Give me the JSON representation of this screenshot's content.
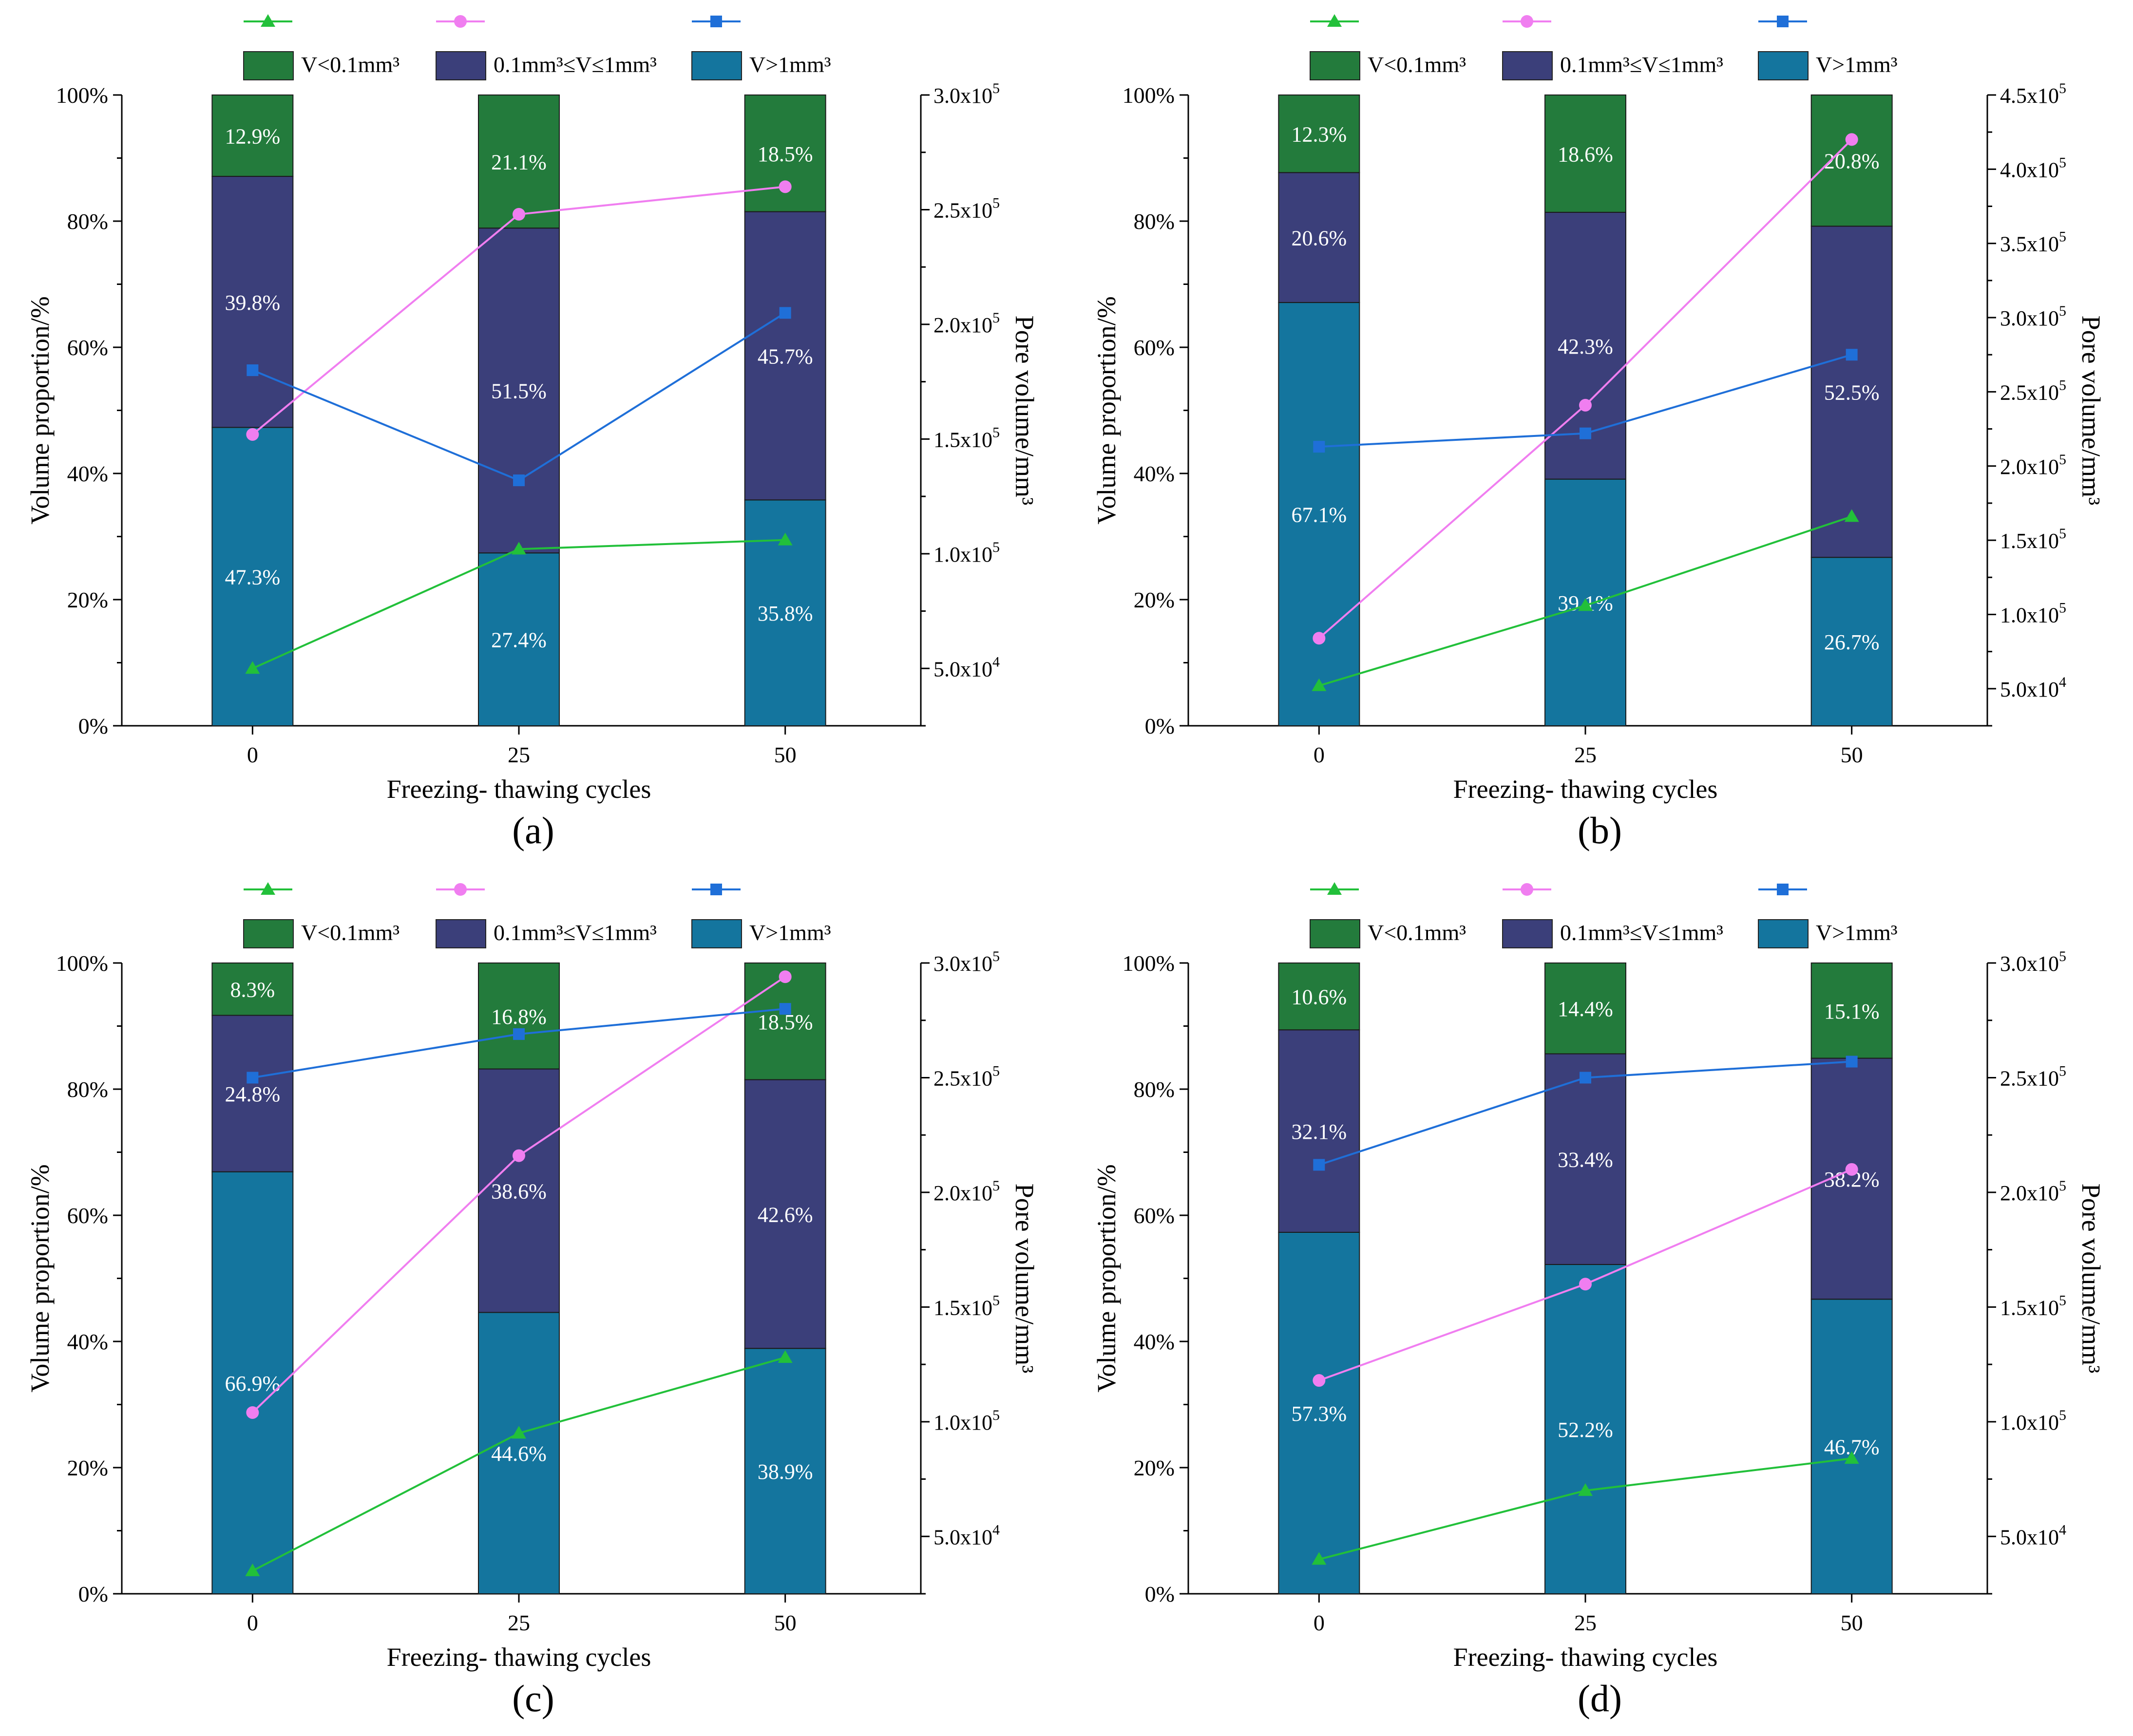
{
  "figure": {
    "panels": [
      {
        "id": "a",
        "label_text": "(a)"
      },
      {
        "id": "b",
        "label_text": "(b)"
      },
      {
        "id": "c",
        "label_text": "(c)"
      },
      {
        "id": "d",
        "label_text": "(d)"
      }
    ]
  },
  "legend": {
    "line_entries": [
      {
        "series": "V<0.1mm³",
        "color": "#22c03a",
        "marker": "triangle"
      },
      {
        "series": "0.1mm³≤V≤1mm³",
        "color": "#f07ef0",
        "marker": "circle"
      },
      {
        "series": "V>1mm³",
        "color": "#1f6fd8",
        "marker": "square"
      }
    ],
    "bar_entries": [
      {
        "label": "V<0.1mm³",
        "color": "#237b3c"
      },
      {
        "label": "0.1mm³≤V≤1mm³",
        "color": "#3b3f7a"
      },
      {
        "label": "V>1mm³",
        "color": "#14759e"
      }
    ]
  },
  "colors": {
    "bar_small": "#237b3c",
    "bar_mid": "#3b3f7a",
    "bar_large": "#14759e",
    "line_small": "#22c03a",
    "line_mid": "#f07ef0",
    "line_large": "#1f6fd8"
  },
  "chart_data": [
    {
      "type": "bar",
      "panel": "(a)",
      "stacked": true,
      "dual_axis": true,
      "categories": [
        "0",
        "25",
        "50"
      ],
      "xlabel": "Freezing- thawing cycles",
      "ylabel": "Volume proportion/%",
      "ylabel_right": "Pore volume/mm³",
      "ylim": [
        0,
        100
      ],
      "yticks": [
        "0%",
        "20%",
        "40%",
        "60%",
        "80%",
        "100%"
      ],
      "y2lim": [
        25000,
        300000
      ],
      "y2ticks": [
        {
          "value": 50000,
          "label": "5.0x10⁴"
        },
        {
          "value": 100000,
          "label": "1.0x10⁵"
        },
        {
          "value": 150000,
          "label": "1.5x10⁵"
        },
        {
          "value": 200000,
          "label": "2.0x10⁵"
        },
        {
          "value": 250000,
          "label": "2.5x10⁵"
        },
        {
          "value": 300000,
          "label": "3.0x10⁵"
        }
      ],
      "bar_series": [
        {
          "name": "V>1mm³",
          "values": [
            47.3,
            27.4,
            35.8
          ],
          "labels": [
            "47.3%",
            "27.4%",
            "35.8%"
          ]
        },
        {
          "name": "0.1mm³≤V≤1mm³",
          "values": [
            39.8,
            51.5,
            45.7
          ],
          "labels": [
            "39.8%",
            "51.5%",
            "45.7%"
          ]
        },
        {
          "name": "V<0.1mm³",
          "values": [
            12.9,
            21.1,
            18.5
          ],
          "labels": [
            "12.9%",
            "21.1%",
            "18.5%"
          ]
        }
      ],
      "line_series": [
        {
          "name": "V<0.1mm³",
          "values": [
            50000,
            102000,
            106000
          ]
        },
        {
          "name": "0.1mm³≤V≤1mm³",
          "values": [
            152000,
            248000,
            260000
          ]
        },
        {
          "name": "V>1mm³",
          "values": [
            180000,
            132000,
            205000
          ]
        }
      ]
    },
    {
      "type": "bar",
      "panel": "(b)",
      "stacked": true,
      "dual_axis": true,
      "categories": [
        "0",
        "25",
        "50"
      ],
      "xlabel": "Freezing- thawing cycles",
      "ylabel": "Volume proportion/%",
      "ylabel_right": "Pore volume/mm³",
      "ylim": [
        0,
        100
      ],
      "yticks": [
        "0%",
        "20%",
        "40%",
        "60%",
        "80%",
        "100%"
      ],
      "y2lim": [
        25000,
        450000
      ],
      "y2ticks": [
        {
          "value": 50000,
          "label": "5.0x10⁴"
        },
        {
          "value": 100000,
          "label": "1.0x10⁵"
        },
        {
          "value": 150000,
          "label": "1.5x10⁵"
        },
        {
          "value": 200000,
          "label": "2.0x10⁵"
        },
        {
          "value": 250000,
          "label": "2.5x10⁵"
        },
        {
          "value": 300000,
          "label": "3.0x10⁵"
        },
        {
          "value": 350000,
          "label": "3.5x10⁵"
        },
        {
          "value": 400000,
          "label": "4.0x10⁵"
        },
        {
          "value": 450000,
          "label": "4.5x10⁵"
        }
      ],
      "bar_series": [
        {
          "name": "V>1mm³",
          "values": [
            67.1,
            39.1,
            26.7
          ],
          "labels": [
            "67.1%",
            "39.1%",
            "26.7%"
          ]
        },
        {
          "name": "0.1mm³≤V≤1mm³",
          "values": [
            20.6,
            42.3,
            52.5
          ],
          "labels": [
            "20.6%",
            "42.3%",
            "52.5%"
          ]
        },
        {
          "name": "V<0.1mm³",
          "values": [
            12.3,
            18.6,
            20.8
          ],
          "labels": [
            "12.3%",
            "18.6%",
            "20.8%"
          ]
        }
      ],
      "line_series": [
        {
          "name": "V<0.1mm³",
          "values": [
            52000,
            106000,
            166000
          ]
        },
        {
          "name": "0.1mm³≤V≤1mm³",
          "values": [
            84000,
            241000,
            420000
          ]
        },
        {
          "name": "V>1mm³",
          "values": [
            213000,
            222000,
            275000
          ]
        }
      ]
    },
    {
      "type": "bar",
      "panel": "(c)",
      "stacked": true,
      "dual_axis": true,
      "categories": [
        "0",
        "25",
        "50"
      ],
      "xlabel": "Freezing- thawing cycles",
      "ylabel": "Volume proportion/%",
      "ylabel_right": "Pore volume/mm³",
      "ylim": [
        0,
        100
      ],
      "yticks": [
        "0%",
        "20%",
        "40%",
        "60%",
        "80%",
        "100%"
      ],
      "y2lim": [
        25000,
        300000
      ],
      "y2ticks": [
        {
          "value": 50000,
          "label": "5.0x10⁴"
        },
        {
          "value": 100000,
          "label": "1.0x10⁵"
        },
        {
          "value": 150000,
          "label": "1.5x10⁵"
        },
        {
          "value": 200000,
          "label": "2.0x10⁵"
        },
        {
          "value": 250000,
          "label": "2.5x10⁵"
        },
        {
          "value": 300000,
          "label": "3.0x10⁵"
        }
      ],
      "bar_series": [
        {
          "name": "V>1mm³",
          "values": [
            66.9,
            44.6,
            38.9
          ],
          "labels": [
            "66.9%",
            "44.6%",
            "38.9%"
          ]
        },
        {
          "name": "0.1mm³≤V≤1mm³",
          "values": [
            24.8,
            38.6,
            42.6
          ],
          "labels": [
            "24.8%",
            "38.6%",
            "42.6%"
          ]
        },
        {
          "name": "V<0.1mm³",
          "values": [
            8.3,
            16.8,
            18.5
          ],
          "labels": [
            "8.3%",
            "16.8%",
            "18.5%"
          ]
        }
      ],
      "line_series": [
        {
          "name": "V<0.1mm³",
          "values": [
            35000,
            95000,
            128000
          ]
        },
        {
          "name": "0.1mm³≤V≤1mm³",
          "values": [
            104000,
            216000,
            294000
          ]
        },
        {
          "name": "V>1mm³",
          "values": [
            250000,
            269000,
            280000
          ]
        }
      ]
    },
    {
      "type": "bar",
      "panel": "(d)",
      "stacked": true,
      "dual_axis": true,
      "categories": [
        "0",
        "25",
        "50"
      ],
      "xlabel": "Freezing- thawing cycles",
      "ylabel": "Volume proportion/%",
      "ylabel_right": "Pore volume/mm³",
      "ylim": [
        0,
        100
      ],
      "yticks": [
        "0%",
        "20%",
        "40%",
        "60%",
        "80%",
        "100%"
      ],
      "y2lim": [
        25000,
        300000
      ],
      "y2ticks": [
        {
          "value": 50000,
          "label": "5.0x10⁴"
        },
        {
          "value": 100000,
          "label": "1.0x10⁵"
        },
        {
          "value": 150000,
          "label": "1.5x10⁵"
        },
        {
          "value": 200000,
          "label": "2.0x10⁵"
        },
        {
          "value": 250000,
          "label": "2.5x10⁵"
        },
        {
          "value": 300000,
          "label": "3.0x10⁵"
        }
      ],
      "bar_series": [
        {
          "name": "V>1mm³",
          "values": [
            57.3,
            52.2,
            46.7
          ],
          "labels": [
            "57.3%",
            "52.2%",
            "46.7%"
          ]
        },
        {
          "name": "0.1mm³≤V≤1mm³",
          "values": [
            32.1,
            33.4,
            38.2
          ],
          "labels": [
            "32.1%",
            "33.4%",
            "38.2%"
          ]
        },
        {
          "name": "V<0.1mm³",
          "values": [
            10.6,
            14.4,
            15.1
          ],
          "labels": [
            "10.6%",
            "14.4%",
            "15.1%"
          ]
        }
      ],
      "line_series": [
        {
          "name": "V<0.1mm³",
          "values": [
            40000,
            70000,
            84000
          ]
        },
        {
          "name": "0.1mm³≤V≤1mm³",
          "values": [
            118000,
            160000,
            210000
          ]
        },
        {
          "name": "V>1mm³",
          "values": [
            212000,
            250000,
            257000
          ]
        }
      ]
    }
  ]
}
